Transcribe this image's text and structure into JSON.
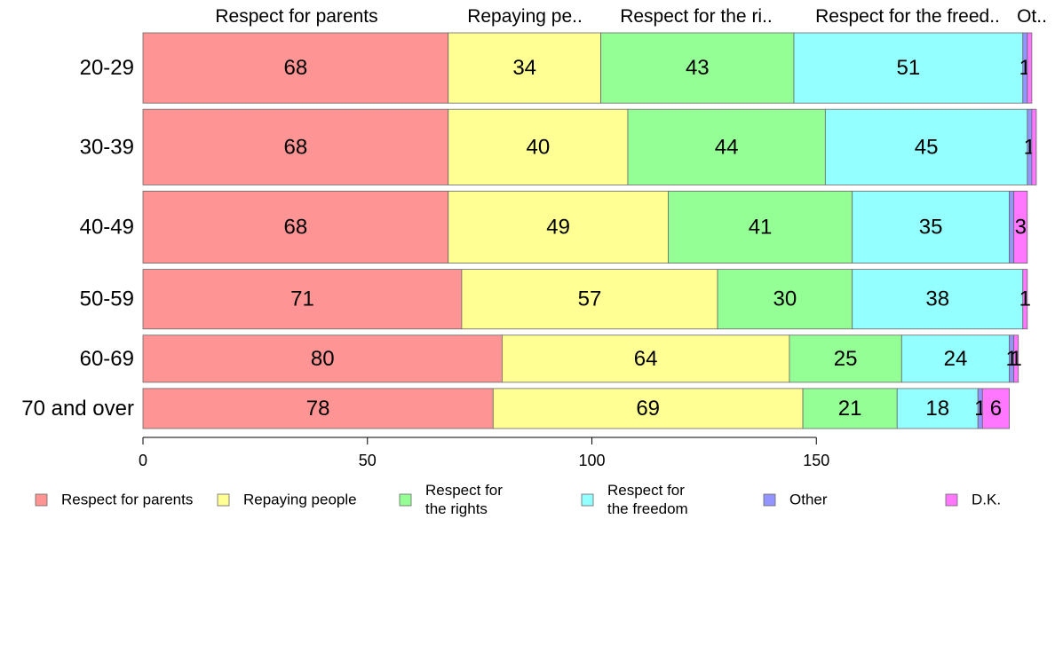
{
  "chart_data": {
    "type": "bar",
    "orientation": "horizontal",
    "stacked": true,
    "variable_width": true,
    "categories": [
      "20-29",
      "30-39",
      "40-49",
      "50-59",
      "60-69",
      "70 and over"
    ],
    "series": [
      {
        "name": "Respect for parents",
        "legend_lines": [
          "Respect for parents"
        ],
        "top_label": "Respect for parents",
        "color": "#ff9494",
        "values": [
          68,
          68,
          68,
          71,
          80,
          78
        ]
      },
      {
        "name": "Repaying people",
        "legend_lines": [
          "Repaying people"
        ],
        "top_label": "Repaying pe..",
        "color": "#ffff94",
        "values": [
          34,
          40,
          49,
          57,
          64,
          69
        ]
      },
      {
        "name": "Respect for the rights",
        "legend_lines": [
          "Respect for",
          "the rights"
        ],
        "top_label": "Respect for the ri..",
        "color": "#94ff94",
        "values": [
          43,
          44,
          41,
          30,
          25,
          21
        ]
      },
      {
        "name": "Respect for the freedom",
        "legend_lines": [
          "Respect for",
          "the freedom"
        ],
        "top_label": "Respect for the freed..",
        "color": "#94ffff",
        "values": [
          51,
          45,
          35,
          38,
          24,
          18
        ]
      },
      {
        "name": "Other",
        "legend_lines": [
          "Other"
        ],
        "top_label": "Ot..",
        "color": "#9494ff",
        "values": [
          1,
          1,
          1,
          0,
          1,
          1
        ]
      },
      {
        "name": "D.K.",
        "legend_lines": [
          "D.K."
        ],
        "top_label": "",
        "color": "#ff77ff",
        "values": [
          1,
          1,
          3,
          1,
          1,
          6
        ]
      }
    ],
    "row_weights": [
      79,
      85,
      81,
      67,
      53,
      45
    ],
    "segment_labels": [
      [
        "68",
        "34",
        "43",
        "51",
        "1",
        ""
      ],
      [
        "68",
        "40",
        "44",
        "45",
        "1",
        ""
      ],
      [
        "68",
        "49",
        "41",
        "35",
        "",
        "3"
      ],
      [
        "71",
        "57",
        "30",
        "38",
        "",
        "1"
      ],
      [
        "80",
        "64",
        "25",
        "24",
        "1",
        "1"
      ],
      [
        "78",
        "69",
        "21",
        "18",
        "1",
        "6"
      ]
    ],
    "x_ticks": [
      0,
      50,
      100,
      150
    ],
    "xlim": [
      0,
      200
    ],
    "title": "",
    "xlabel": "",
    "ylabel": "",
    "grid": false,
    "legend_position": "bottom"
  }
}
